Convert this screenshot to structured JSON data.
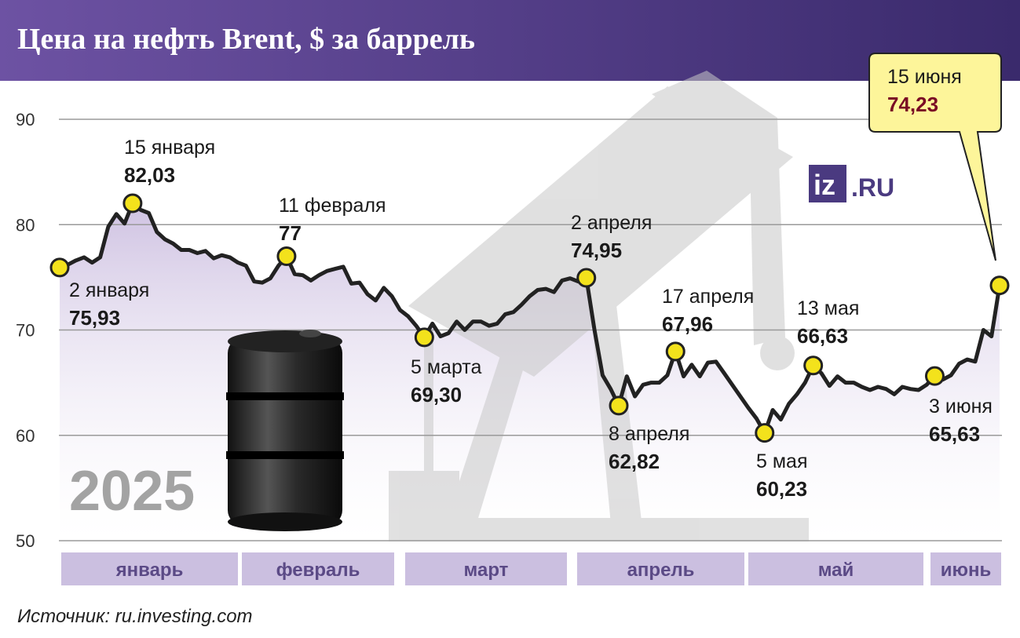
{
  "chart_data": {
    "type": "line",
    "title": "Цена на нефть Brent, $ за баррель",
    "year_label": "2025",
    "source": "Источник: ru.investing.com",
    "logo": {
      "mark": "iz",
      "text": ".RU"
    },
    "months": [
      "январь",
      "февраль",
      "март",
      "апрель",
      "май",
      "июнь"
    ],
    "ylim": [
      50,
      90
    ],
    "yticks": [
      50,
      60,
      70,
      80,
      90
    ],
    "grid": true,
    "color": "#222222",
    "area_color": "#cfc2e2",
    "marker_color": "#f3e21c",
    "categories": [
      null,
      null,
      null,
      null,
      null,
      null,
      null,
      null,
      null,
      null,
      null,
      null,
      null,
      null,
      null,
      null,
      null,
      null,
      null,
      null,
      null,
      null,
      null,
      null,
      null,
      null,
      null,
      null,
      null,
      null,
      null,
      null,
      null,
      null,
      null,
      null,
      null,
      null,
      null,
      null,
      null,
      null,
      null,
      null,
      null,
      null,
      null,
      null,
      null,
      null,
      null,
      null,
      null,
      null,
      null,
      null,
      null,
      null,
      null,
      null,
      null,
      null,
      null,
      null,
      null,
      null,
      null,
      null,
      null,
      null,
      null,
      null,
      null,
      null,
      null,
      null,
      null,
      null,
      null,
      null,
      null,
      null,
      null,
      null,
      null,
      null,
      null,
      null,
      null,
      null,
      null,
      null,
      null,
      null,
      null,
      null,
      null,
      null,
      null,
      null,
      null,
      null,
      null,
      null,
      null,
      null,
      null,
      null,
      null,
      null,
      null,
      null,
      null,
      null,
      null,
      null,
      null
    ],
    "values": [
      75.93,
      76.2,
      76.6,
      76.9,
      76.4,
      76.9,
      79.8,
      81.0,
      80.1,
      82.03,
      81.4,
      81.1,
      79.3,
      78.6,
      78.2,
      77.6,
      77.6,
      77.3,
      77.5,
      76.8,
      77.1,
      76.9,
      76.4,
      76.1,
      74.6,
      74.5,
      74.9,
      76.1,
      77,
      75.3,
      75.2,
      74.7,
      75.2,
      75.6,
      75.8,
      76.0,
      74.4,
      74.5,
      73.4,
      72.8,
      74.0,
      73.2,
      71.9,
      71.3,
      70.4,
      69.3,
      70.6,
      69.4,
      69.7,
      70.8,
      70.0,
      70.8,
      70.8,
      70.4,
      70.6,
      71.5,
      71.7,
      72.4,
      73.2,
      73.8,
      73.9,
      73.6,
      74.7,
      74.9,
      74.6,
      74.95,
      70.0,
      65.7,
      64.4,
      62.82,
      65.6,
      63.7,
      64.8,
      65.0,
      65.0,
      65.7,
      67.96,
      65.6,
      66.7,
      65.6,
      66.9,
      67.0,
      65.9,
      64.8,
      63.7,
      62.6,
      61.6,
      60.23,
      62.4,
      61.5,
      63.0,
      63.9,
      65.0,
      66.63,
      65.9,
      64.7,
      65.6,
      65.0,
      65.0,
      64.6,
      64.3,
      64.6,
      64.4,
      63.9,
      64.6,
      64.4,
      64.3,
      64.8,
      65.63,
      65.3,
      65.7,
      66.8,
      67.2,
      67.0,
      70.0,
      69.4,
      74.23
    ],
    "annotations": [
      {
        "date": "2 января",
        "value": 75.93,
        "value_label": "75,93"
      },
      {
        "date": "15 января",
        "value": 82.03,
        "value_label": "82,03"
      },
      {
        "date": "11 февраля",
        "value": 77
      },
      {
        "date": "5 марта",
        "value": 69.3,
        "value_label": "69,30"
      },
      {
        "date": "2 апреля",
        "value": 74.95,
        "value_label": "74,95"
      },
      {
        "date": "8 апреля",
        "value": 62.82,
        "value_label": "62,82"
      },
      {
        "date": "17 апреля",
        "value": 67.96,
        "value_label": "67,96"
      },
      {
        "date": "5 мая",
        "value": 60.23,
        "value_label": "60,23"
      },
      {
        "date": "13 мая",
        "value": 66.63,
        "value_label": "66,63"
      },
      {
        "date": "3 июня",
        "value": 65.63,
        "value_label": "65,63"
      },
      {
        "date": "15 июня",
        "value": 74.23,
        "value_label": "74,23"
      }
    ]
  }
}
